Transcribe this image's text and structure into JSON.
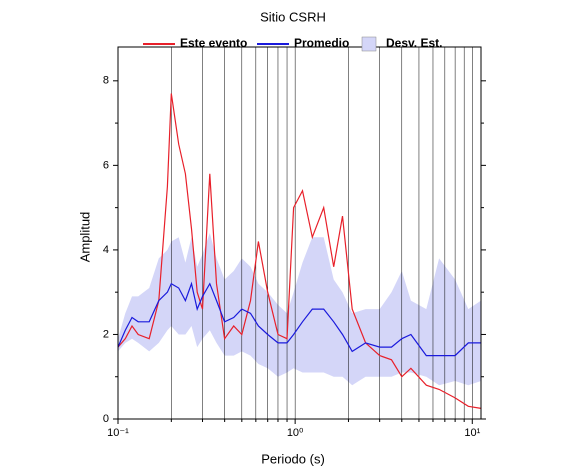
{
  "chart_data": {
    "type": "line",
    "title": "Sitio CSRH",
    "xlabel": "Periodo (s)",
    "ylabel": "Amplitud",
    "xscale": "log",
    "xlim": [
      0.1,
      11.2
    ],
    "ylim": [
      0,
      8.8
    ],
    "xticks": [
      {
        "value": 0.1,
        "label": "10⁻¹"
      },
      {
        "value": 1,
        "label": "10⁰"
      },
      {
        "value": 10,
        "label": "10¹"
      }
    ],
    "xminor": [
      0.2,
      0.3,
      0.4,
      0.5,
      0.6,
      0.7,
      0.8,
      0.9,
      2,
      3,
      4,
      5,
      6,
      7,
      8,
      9
    ],
    "yticks": [
      0,
      2,
      4,
      6,
      8
    ],
    "yminor": [
      1,
      3,
      5,
      7
    ],
    "grid": true,
    "x": [
      0.1,
      0.11,
      0.12,
      0.13,
      0.15,
      0.17,
      0.19,
      0.2,
      0.22,
      0.24,
      0.26,
      0.28,
      0.3,
      0.33,
      0.36,
      0.4,
      0.45,
      0.5,
      0.56,
      0.62,
      0.7,
      0.8,
      0.9,
      0.98,
      1.1,
      1.25,
      1.45,
      1.65,
      1.85,
      2.1,
      2.5,
      3,
      3.5,
      4,
      4.5,
      5.5,
      6.5,
      8,
      9.5,
      11.2
    ],
    "series": [
      {
        "name": "Este evento",
        "color": "#e8202a",
        "values": [
          1.7,
          1.9,
          2.2,
          2.0,
          1.9,
          2.8,
          5.5,
          7.7,
          6.5,
          5.8,
          4.5,
          3.0,
          2.6,
          5.8,
          3.2,
          1.9,
          2.2,
          2.0,
          2.8,
          4.2,
          3.0,
          2.0,
          1.9,
          5.0,
          5.4,
          4.3,
          5.0,
          3.6,
          4.8,
          2.6,
          1.8,
          1.5,
          1.4,
          1.0,
          1.2,
          0.8,
          0.7,
          0.5,
          0.3,
          0.25
        ]
      },
      {
        "name": "Promedio",
        "color": "#1a1adc",
        "values": [
          1.7,
          2.1,
          2.4,
          2.3,
          2.3,
          2.8,
          3.0,
          3.2,
          3.1,
          2.8,
          3.2,
          2.6,
          2.9,
          3.2,
          2.8,
          2.3,
          2.4,
          2.6,
          2.5,
          2.2,
          2.0,
          1.8,
          1.8,
          2.0,
          2.3,
          2.6,
          2.6,
          2.3,
          2.0,
          1.6,
          1.8,
          1.7,
          1.7,
          1.9,
          2.0,
          1.5,
          1.5,
          1.5,
          1.8,
          1.8
        ]
      },
      {
        "name": "Desv. Est.",
        "color": "#d4d6f8",
        "upper": [
          1.9,
          2.5,
          2.9,
          2.9,
          3.1,
          3.8,
          4.0,
          4.2,
          4.3,
          3.7,
          4.3,
          3.6,
          3.9,
          4.4,
          3.8,
          3.3,
          3.5,
          3.8,
          3.6,
          3.2,
          3.0,
          2.7,
          2.5,
          3.0,
          3.7,
          4.3,
          4.3,
          3.3,
          3.0,
          2.5,
          2.6,
          2.6,
          3.0,
          3.5,
          2.8,
          2.6,
          3.8,
          3.3,
          2.6,
          2.8
        ],
        "lower": [
          1.6,
          1.8,
          1.9,
          1.8,
          1.6,
          1.8,
          2.1,
          2.2,
          2.0,
          2.0,
          2.2,
          1.7,
          1.9,
          2.1,
          1.8,
          1.5,
          1.5,
          1.6,
          1.5,
          1.3,
          1.2,
          1.0,
          1.1,
          1.2,
          1.1,
          1.1,
          1.1,
          1.0,
          1.0,
          0.8,
          1.0,
          1.0,
          1.0,
          1.1,
          1.1,
          1.0,
          0.8,
          0.9,
          0.8,
          0.9
        ]
      }
    ]
  }
}
